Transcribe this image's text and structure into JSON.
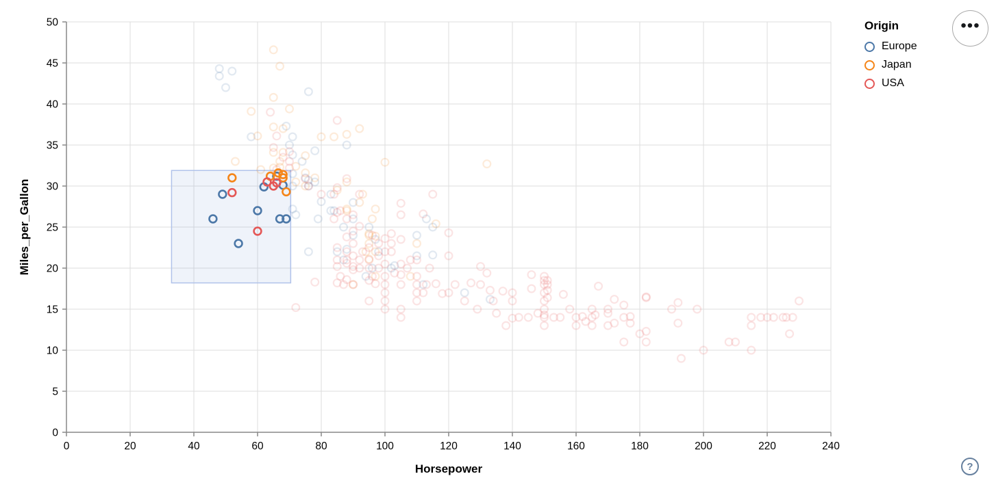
{
  "icons": {
    "menu_ellipsis": "•••",
    "help_question": "?"
  },
  "styles": {
    "background": "#ffffff",
    "grid_color": "#dddddd",
    "axis_color": "#888888",
    "label_color": "#000000",
    "brush_fill": "rgba(125,160,215,0.12)",
    "brush_stroke": "#b0c2ea",
    "point_radius": 5.4,
    "point_stroke_width": 2.2,
    "selected_opacity": 1,
    "unselected_opacity": 0.16
  },
  "chart_data": {
    "type": "scatter",
    "title": "",
    "xlabel": "Horsepower",
    "ylabel": "Miles_per_Gallon",
    "xlim": [
      0,
      240
    ],
    "ylim": [
      0,
      50
    ],
    "x_ticks": [
      0,
      20,
      40,
      60,
      80,
      100,
      120,
      140,
      160,
      180,
      200,
      220,
      240
    ],
    "y_ticks": [
      0,
      5,
      10,
      15,
      20,
      25,
      30,
      35,
      40,
      45,
      50
    ],
    "grid": true,
    "legend": {
      "title": "Origin",
      "position": "top-right",
      "entries": [
        {
          "label": "Europe",
          "color": "#4c78a8"
        },
        {
          "label": "Japan",
          "color": "#f58518"
        },
        {
          "label": "USA",
          "color": "#e45756"
        }
      ]
    },
    "brush_selection": {
      "horsepower": [
        33,
        70.4
      ],
      "miles_per_gallon": [
        18.2,
        31.9
      ]
    },
    "series": [
      {
        "name": "Europe",
        "color": "#4c78a8",
        "points": [
          [
            46,
            26
          ],
          [
            49,
            29
          ],
          [
            54,
            23
          ],
          [
            60,
            27
          ],
          [
            62,
            29.9
          ],
          [
            66,
            31.2
          ],
          [
            68,
            30.1
          ],
          [
            67,
            26
          ],
          [
            69,
            26
          ],
          [
            48,
            44.3
          ],
          [
            48,
            43.4
          ],
          [
            52,
            44
          ],
          [
            50,
            42
          ],
          [
            76,
            41.5
          ],
          [
            58,
            36
          ],
          [
            69,
            37.3
          ],
          [
            71,
            36
          ],
          [
            70,
            35
          ],
          [
            71,
            33.8
          ],
          [
            74,
            33
          ],
          [
            78,
            34.3
          ],
          [
            88,
            35
          ],
          [
            76,
            30.7
          ],
          [
            78,
            30.5
          ],
          [
            71,
            31.5
          ],
          [
            71,
            30
          ],
          [
            83,
            29
          ],
          [
            83,
            27
          ],
          [
            87,
            25
          ],
          [
            90,
            24
          ],
          [
            95,
            25
          ],
          [
            113,
            26
          ],
          [
            90,
            28
          ],
          [
            76,
            30
          ],
          [
            112,
            18
          ],
          [
            76,
            22
          ],
          [
            87,
            21
          ],
          [
            90,
            26
          ],
          [
            103,
            20.3
          ],
          [
            115,
            25
          ],
          [
            110,
            24
          ],
          [
            110,
            21.5
          ],
          [
            125,
            17
          ],
          [
            133,
            16.2
          ],
          [
            115,
            21.6
          ],
          [
            98,
            22
          ],
          [
            102,
            20
          ],
          [
            94,
            19
          ],
          [
            71,
            27.2
          ],
          [
            72,
            26.5
          ],
          [
            84,
            27
          ],
          [
            85,
            22
          ],
          [
            80,
            28.1
          ],
          [
            79,
            26
          ],
          [
            97,
            23.5
          ],
          [
            96,
            20
          ],
          [
            88,
            22.3
          ],
          [
            75,
            31
          ]
        ]
      },
      {
        "name": "Japan",
        "color": "#f58518",
        "points": [
          [
            52,
            31
          ],
          [
            64,
            31.2
          ],
          [
            66.5,
            31.6
          ],
          [
            68,
            31.4
          ],
          [
            68,
            31
          ],
          [
            69,
            29.3
          ],
          [
            65,
            46.6
          ],
          [
            67,
            44.6
          ],
          [
            65,
            40.8
          ],
          [
            70,
            39.4
          ],
          [
            58,
            39.1
          ],
          [
            60,
            36.1
          ],
          [
            65,
            37.2
          ],
          [
            68,
            37
          ],
          [
            92,
            37
          ],
          [
            88,
            36.3
          ],
          [
            84,
            36
          ],
          [
            80,
            36
          ],
          [
            65,
            34.1
          ],
          [
            68,
            34.1
          ],
          [
            75,
            33.7
          ],
          [
            72,
            32.4
          ],
          [
            67,
            32.3
          ],
          [
            100,
            32.9
          ],
          [
            132,
            32.7
          ],
          [
            65,
            32.2
          ],
          [
            53,
            33
          ],
          [
            61,
            32
          ],
          [
            75,
            31.6
          ],
          [
            72,
            30.5
          ],
          [
            78,
            31
          ],
          [
            88,
            30.5
          ],
          [
            85,
            29.5
          ],
          [
            88,
            27
          ],
          [
            88,
            27.2
          ],
          [
            92,
            28
          ],
          [
            95,
            24
          ],
          [
            95,
            24.2
          ],
          [
            94,
            22
          ],
          [
            97,
            27.2
          ],
          [
            97,
            23.9
          ],
          [
            97,
            22
          ],
          [
            95,
            21.1
          ],
          [
            108,
            19
          ],
          [
            97,
            19
          ],
          [
            90,
            18
          ],
          [
            95,
            23
          ],
          [
            75,
            30
          ],
          [
            67,
            33
          ],
          [
            116,
            25.4
          ],
          [
            110,
            23
          ],
          [
            96,
            26
          ],
          [
            93,
            29
          ]
        ]
      },
      {
        "name": "USA",
        "color": "#e45756",
        "points": [
          [
            52,
            29.2
          ],
          [
            63,
            30.5
          ],
          [
            65,
            30
          ],
          [
            66,
            30.4
          ],
          [
            60,
            24.5
          ],
          [
            64,
            39
          ],
          [
            66,
            36.1
          ],
          [
            85,
            38
          ],
          [
            70,
            34.2
          ],
          [
            65,
            34.7
          ],
          [
            68,
            33.5
          ],
          [
            70,
            33
          ],
          [
            70,
            32.2
          ],
          [
            66,
            32
          ],
          [
            75,
            30.9
          ],
          [
            76,
            30
          ],
          [
            80,
            29
          ],
          [
            84,
            29
          ],
          [
            88,
            30.9
          ],
          [
            85,
            29.8
          ],
          [
            92,
            29
          ],
          [
            115,
            29
          ],
          [
            84,
            26
          ],
          [
            85,
            26.8
          ],
          [
            86,
            27
          ],
          [
            88,
            26
          ],
          [
            90,
            26.5
          ],
          [
            92,
            25.1
          ],
          [
            90,
            24.5
          ],
          [
            90,
            23
          ],
          [
            88,
            23.8
          ],
          [
            93,
            22
          ],
          [
            95,
            22.5
          ],
          [
            96,
            24
          ],
          [
            98,
            23
          ],
          [
            100,
            23.6
          ],
          [
            102,
            24.2
          ],
          [
            105,
            23.5
          ],
          [
            100,
            22
          ],
          [
            102,
            23
          ],
          [
            105,
            26.5
          ],
          [
            105,
            27.9
          ],
          [
            112,
            26.6
          ],
          [
            120,
            24.3
          ],
          [
            85,
            18.2
          ],
          [
            85,
            20.2
          ],
          [
            85,
            21
          ],
          [
            85,
            22.5
          ],
          [
            86,
            19
          ],
          [
            87,
            18
          ],
          [
            88,
            18.6
          ],
          [
            88,
            20.6
          ],
          [
            88,
            21
          ],
          [
            88,
            22
          ],
          [
            90,
            19.8
          ],
          [
            90,
            20.2
          ],
          [
            90,
            21.5
          ],
          [
            90,
            18
          ],
          [
            92,
            20
          ],
          [
            92,
            21
          ],
          [
            95,
            18.5
          ],
          [
            95,
            20
          ],
          [
            95,
            21
          ],
          [
            95,
            16
          ],
          [
            96,
            19
          ],
          [
            97,
            18.1
          ],
          [
            98,
            20
          ],
          [
            98,
            21.5
          ],
          [
            100,
            17
          ],
          [
            100,
            18
          ],
          [
            100,
            19
          ],
          [
            100,
            20.5
          ],
          [
            100,
            16
          ],
          [
            100,
            15
          ],
          [
            102,
            22
          ],
          [
            103,
            19.4
          ],
          [
            105,
            18
          ],
          [
            105,
            19.2
          ],
          [
            105,
            20.5
          ],
          [
            105,
            15
          ],
          [
            105,
            14
          ],
          [
            107,
            20
          ],
          [
            108,
            21
          ],
          [
            110,
            16
          ],
          [
            110,
            17
          ],
          [
            110,
            18
          ],
          [
            110,
            19
          ],
          [
            110,
            21
          ],
          [
            112,
            17
          ],
          [
            113,
            18
          ],
          [
            114,
            20
          ],
          [
            116,
            18.1
          ],
          [
            118,
            16.9
          ],
          [
            120,
            17
          ],
          [
            120,
            21.5
          ],
          [
            122,
            18
          ],
          [
            125,
            16
          ],
          [
            127,
            18.2
          ],
          [
            129,
            15
          ],
          [
            130,
            20.2
          ],
          [
            132,
            19.4
          ],
          [
            133,
            17.3
          ],
          [
            134,
            16
          ],
          [
            135,
            14.5
          ],
          [
            137,
            17.2
          ],
          [
            138,
            13
          ],
          [
            140,
            13.9
          ],
          [
            140,
            17
          ],
          [
            140,
            16
          ],
          [
            142,
            14
          ],
          [
            145,
            14
          ],
          [
            148,
            14.5
          ],
          [
            78,
            18.3
          ],
          [
            72,
            15.2
          ],
          [
            150,
            13
          ],
          [
            150,
            14
          ],
          [
            150,
            14.3
          ],
          [
            150,
            15
          ],
          [
            150,
            16
          ],
          [
            150,
            17
          ],
          [
            150,
            18
          ],
          [
            150,
            18.5
          ],
          [
            150,
            19
          ],
          [
            146,
            19.2
          ],
          [
            151,
            18.5
          ],
          [
            151,
            18
          ],
          [
            146,
            17.5
          ],
          [
            151,
            17.3
          ],
          [
            156,
            16.8
          ],
          [
            151,
            16.4
          ],
          [
            158,
            15
          ],
          [
            160,
            13
          ],
          [
            162,
            14.1
          ],
          [
            163,
            13.5
          ],
          [
            165,
            13
          ],
          [
            165,
            14
          ],
          [
            166,
            14.3
          ],
          [
            167,
            17.8
          ],
          [
            170,
            13
          ],
          [
            170,
            14.5
          ],
          [
            172,
            13.3
          ],
          [
            172,
            16.2
          ],
          [
            175,
            14
          ],
          [
            175,
            15.5
          ],
          [
            175,
            11
          ],
          [
            177,
            14.1
          ],
          [
            177,
            13.3
          ],
          [
            180,
            12
          ],
          [
            182,
            16.5
          ],
          [
            182,
            16.4
          ],
          [
            182,
            12.3
          ],
          [
            182,
            11
          ],
          [
            130,
            18
          ],
          [
            165,
            15
          ],
          [
            198,
            15
          ],
          [
            220,
            14
          ],
          [
            215,
            14
          ],
          [
            225,
            14
          ],
          [
            190,
            15
          ],
          [
            170,
            15
          ],
          [
            160,
            14
          ],
          [
            153,
            14
          ],
          [
            155,
            14
          ],
          [
            192,
            15.8
          ],
          [
            192,
            13.3
          ],
          [
            193,
            9
          ],
          [
            200,
            10
          ],
          [
            208,
            11
          ],
          [
            210,
            11
          ],
          [
            215,
            10
          ],
          [
            215,
            13
          ],
          [
            218,
            14
          ],
          [
            222,
            14
          ],
          [
            226,
            14
          ],
          [
            228,
            14
          ],
          [
            227,
            12
          ],
          [
            230,
            16
          ]
        ]
      }
    ]
  }
}
